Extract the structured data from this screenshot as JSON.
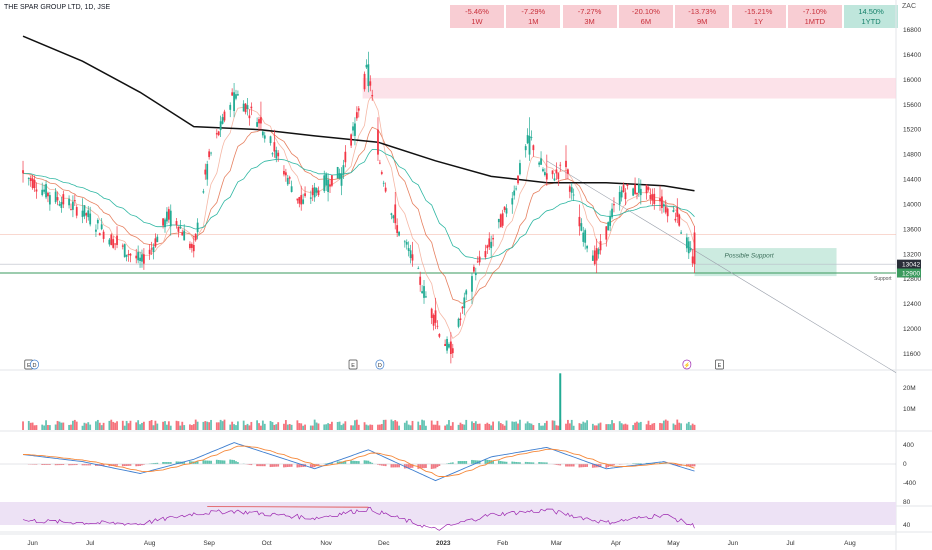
{
  "chart_data": {
    "type": "candlestick",
    "title": "THE SPAR GROUP LTD, 1D, JSE",
    "currency": "ZAC",
    "period_stats": [
      {
        "value": "-5.46%",
        "label": "1W"
      },
      {
        "value": "-7.29%",
        "label": "1M"
      },
      {
        "value": "-7.27%",
        "label": "3M"
      },
      {
        "value": "-20.10%",
        "label": "6M"
      },
      {
        "value": "-13.73%",
        "label": "9M"
      },
      {
        "value": "-15.21%",
        "label": "1Y"
      },
      {
        "value": "-7.10%",
        "label": "1MTD"
      },
      {
        "value": "14.50%",
        "label": "1YTD"
      }
    ],
    "price_axis": {
      "ticks": [
        16800,
        16400,
        16000,
        15600,
        15200,
        14800,
        14400,
        14000,
        13600,
        13200,
        12800,
        12400,
        12000,
        11600
      ],
      "ylim": [
        11430,
        17000
      ]
    },
    "current_price": 13042,
    "support_price": 12900,
    "support_label": "Support",
    "possible_support_label": "Possible Support",
    "volume_axis": {
      "ticks": [
        "20M",
        "10M"
      ]
    },
    "macd_axis": {
      "ticks": [
        400,
        0,
        -400
      ]
    },
    "rsi_axis": {
      "ticks": [
        80,
        40
      ]
    },
    "x_axis": {
      "ticks": [
        "Jun",
        "Jul",
        "Aug",
        "Sep",
        "Oct",
        "Nov",
        "Dec",
        "2023",
        "Feb",
        "Mar",
        "Apr",
        "May",
        "Jun",
        "Jul",
        "Aug"
      ]
    },
    "event_markers": [
      {
        "x": "2022-05-30",
        "text": "E"
      },
      {
        "x": "2022-06-02",
        "text": "D"
      },
      {
        "x": "2022-11-15",
        "text": "E"
      },
      {
        "x": "2022-11-29",
        "text": "D"
      },
      {
        "x": "2023-05-08",
        "text": "⚡"
      },
      {
        "x": "2023-05-25",
        "text": "E"
      }
    ],
    "price_series": [
      [
        "2022-05-27",
        14550,
        14700,
        14350,
        14500
      ],
      [
        "2022-06-10",
        14000,
        14200,
        13900,
        14150
      ],
      [
        "2022-06-27",
        13800,
        14100,
        13700,
        13900
      ],
      [
        "2022-07-15",
        13500,
        13650,
        13300,
        13350
      ],
      [
        "2022-07-29",
        13200,
        13300,
        12950,
        13050
      ],
      [
        "2022-08-12",
        13650,
        14000,
        13500,
        13900
      ],
      [
        "2022-08-24",
        13350,
        13500,
        13150,
        13250
      ],
      [
        "2022-08-31",
        14400,
        14700,
        14300,
        14650
      ],
      [
        "2022-09-14",
        15500,
        15950,
        15400,
        15800
      ],
      [
        "2022-09-28",
        15400,
        15650,
        15200,
        15300
      ],
      [
        "2022-10-05",
        15000,
        15200,
        14750,
        14850
      ],
      [
        "2022-10-19",
        14150,
        14300,
        13900,
        14000
      ],
      [
        "2022-11-02",
        14200,
        14500,
        14050,
        14400
      ],
      [
        "2022-11-09",
        14300,
        14600,
        14150,
        14500
      ],
      [
        "2022-11-16",
        15100,
        15400,
        14950,
        15300
      ],
      [
        "2022-11-23",
        15900,
        16450,
        15800,
        16250
      ],
      [
        "2022-11-28",
        15200,
        15400,
        14700,
        14800
      ],
      [
        "2022-12-07",
        14000,
        14200,
        13600,
        13700
      ],
      [
        "2022-12-16",
        13200,
        13400,
        13000,
        13100
      ],
      [
        "2022-12-28",
        12300,
        12500,
        12000,
        12100
      ],
      [
        "2023-01-05",
        11800,
        11950,
        11450,
        11600
      ],
      [
        "2023-01-16",
        12600,
        12900,
        12400,
        12850
      ],
      [
        "2023-01-26",
        13300,
        13500,
        13150,
        13400
      ],
      [
        "2023-02-06",
        14000,
        14200,
        13850,
        14100
      ],
      [
        "2023-02-15",
        14800,
        15400,
        14700,
        15100
      ],
      [
        "2023-02-24",
        14500,
        14800,
        14300,
        14400
      ],
      [
        "2023-03-06",
        14700,
        14950,
        14400,
        14600
      ],
      [
        "2023-03-13",
        13800,
        14000,
        13500,
        13650
      ],
      [
        "2023-03-22",
        13300,
        13450,
        12900,
        13100
      ],
      [
        "2023-04-03",
        14000,
        14300,
        13900,
        14200
      ],
      [
        "2023-04-14",
        14150,
        14400,
        14000,
        14250
      ],
      [
        "2023-04-24",
        14100,
        14300,
        13900,
        14050
      ],
      [
        "2023-05-03",
        13950,
        14100,
        13700,
        13800
      ],
      [
        "2023-05-12",
        13550,
        13650,
        12900,
        13042
      ]
    ],
    "sma200": [
      [
        "2022-05-27",
        16700
      ],
      [
        "2022-06-27",
        16300
      ],
      [
        "2022-07-27",
        15800
      ],
      [
        "2022-08-24",
        15250
      ],
      [
        "2022-09-28",
        15200
      ],
      [
        "2022-10-26",
        15100
      ],
      [
        "2022-11-28",
        15000
      ],
      [
        "2022-12-28",
        14700
      ],
      [
        "2023-01-26",
        14450
      ],
      [
        "2023-02-24",
        14350
      ],
      [
        "2023-03-27",
        14350
      ],
      [
        "2023-04-26",
        14300
      ],
      [
        "2023-05-12",
        14220
      ]
    ],
    "macd_series": [
      [
        "2022-05-27",
        200
      ],
      [
        "2022-06-27",
        50
      ],
      [
        "2022-07-27",
        -200
      ],
      [
        "2022-08-24",
        100
      ],
      [
        "2022-09-14",
        450
      ],
      [
        "2022-10-26",
        -100
      ],
      [
        "2022-11-23",
        300
      ],
      [
        "2022-12-28",
        -350
      ],
      [
        "2023-01-26",
        150
      ],
      [
        "2023-02-24",
        350
      ],
      [
        "2023-03-27",
        -100
      ],
      [
        "2023-04-26",
        50
      ],
      [
        "2023-05-12",
        -150
      ]
    ],
    "rsi_series": [
      [
        "2022-05-27",
        48
      ],
      [
        "2022-06-27",
        44
      ],
      [
        "2022-07-27",
        42
      ],
      [
        "2022-08-24",
        60
      ],
      [
        "2022-09-14",
        64
      ],
      [
        "2022-10-26",
        52
      ],
      [
        "2022-11-23",
        68
      ],
      [
        "2022-12-28",
        32
      ],
      [
        "2023-01-26",
        58
      ],
      [
        "2023-02-24",
        66
      ],
      [
        "2023-03-27",
        44
      ],
      [
        "2023-04-26",
        58
      ],
      [
        "2023-05-12",
        38
      ]
    ],
    "volume_spike": {
      "x": "2023-03-03",
      "value": 27000000
    },
    "colors": {
      "up": "#22ab94",
      "down": "#f23645",
      "sma200": "#111111",
      "ema_fast": "#e0623a",
      "ema_slow": "#2fb7a3",
      "resistance_zone": "#fbd6df",
      "support_zone": "#bfe6d8",
      "support_line": "#3a9a5d",
      "macd": "#3f7fd0",
      "signal": "#f5883a",
      "rsi": "#9c27b0",
      "rsi_band": "#ede2f5"
    }
  }
}
